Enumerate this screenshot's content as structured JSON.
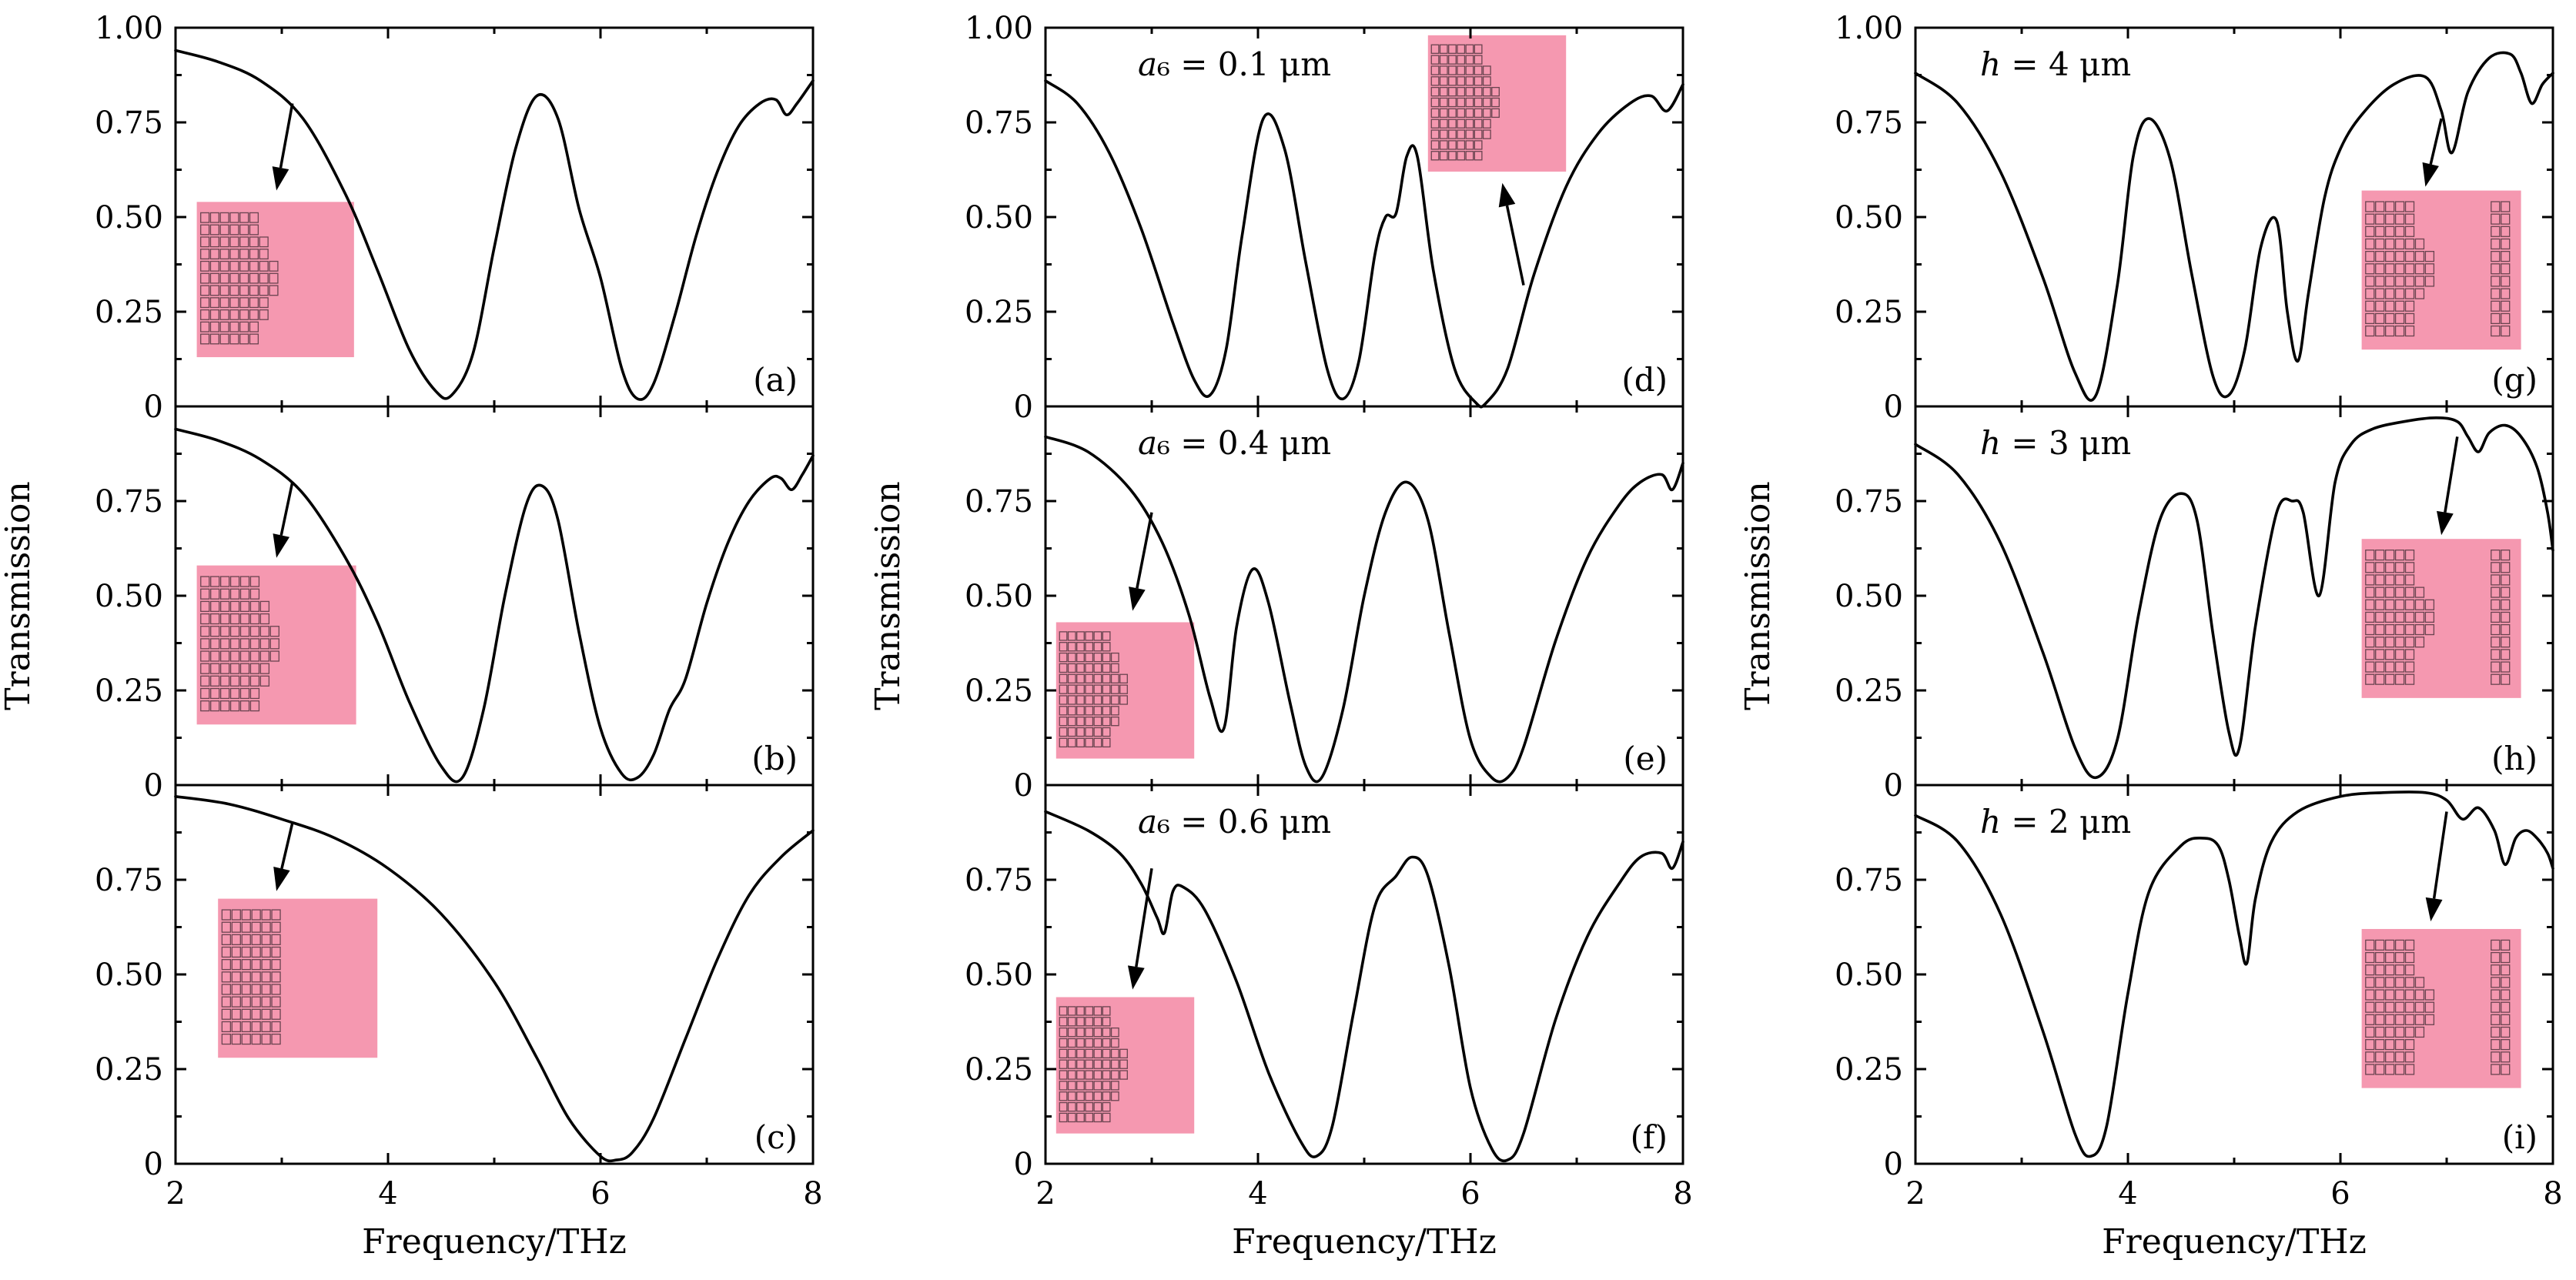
{
  "chart_data": {
    "type": "line",
    "xlabel": "Frequency/THz",
    "ylabel": "Transmission",
    "xlim": [
      2,
      8
    ],
    "ylim": [
      0,
      1
    ],
    "x_ticks": [
      "2",
      "4",
      "6",
      "8"
    ],
    "y_ticks_top": [
      "1.00",
      "0.75",
      "0.50",
      "0.25",
      "0"
    ],
    "y_ticks_lower": [
      "0.75",
      "0.50",
      "0.25",
      "0"
    ],
    "colors": {
      "line": "#000000",
      "inset": "#F598B0",
      "inset_cells": "#6a4450"
    },
    "panels": [
      {
        "label": "(a)",
        "annotation_var": "",
        "annotation_value": "",
        "inset_type": "step4",
        "inset": [
          2.2,
          0.13,
          3.68,
          0.54
        ],
        "arrow": [
          3.1,
          0.8,
          2.95,
          0.57
        ],
        "x": [
          2.0,
          2.4,
          2.8,
          3.2,
          3.6,
          3.9,
          4.2,
          4.45,
          4.6,
          4.8,
          5.0,
          5.2,
          5.4,
          5.6,
          5.8,
          6.0,
          6.2,
          6.35,
          6.5,
          6.7,
          6.9,
          7.1,
          7.3,
          7.5,
          7.65,
          7.75,
          7.85,
          8.0
        ],
        "y": [
          0.94,
          0.91,
          0.86,
          0.76,
          0.56,
          0.36,
          0.15,
          0.04,
          0.03,
          0.14,
          0.42,
          0.68,
          0.82,
          0.76,
          0.52,
          0.34,
          0.1,
          0.02,
          0.06,
          0.24,
          0.45,
          0.62,
          0.74,
          0.8,
          0.81,
          0.77,
          0.8,
          0.86
        ]
      },
      {
        "label": "(b)",
        "annotation_var": "",
        "annotation_value": "",
        "inset_type": "step3",
        "inset": [
          2.2,
          0.16,
          3.7,
          0.58
        ],
        "arrow": [
          3.1,
          0.8,
          2.95,
          0.6
        ],
        "x": [
          2.0,
          2.4,
          2.8,
          3.2,
          3.6,
          3.9,
          4.2,
          4.5,
          4.7,
          4.9,
          5.1,
          5.3,
          5.45,
          5.6,
          5.8,
          6.0,
          6.2,
          6.35,
          6.5,
          6.65,
          6.8,
          7.0,
          7.2,
          7.4,
          7.6,
          7.7,
          7.8,
          7.9,
          8.0
        ],
        "y": [
          0.94,
          0.91,
          0.86,
          0.77,
          0.6,
          0.43,
          0.22,
          0.05,
          0.02,
          0.2,
          0.5,
          0.74,
          0.79,
          0.7,
          0.4,
          0.15,
          0.03,
          0.02,
          0.08,
          0.2,
          0.28,
          0.48,
          0.64,
          0.75,
          0.81,
          0.81,
          0.78,
          0.82,
          0.87
        ]
      },
      {
        "label": "(c)",
        "annotation_var": "",
        "annotation_value": "",
        "inset_type": "uniform",
        "inset": [
          2.4,
          0.28,
          3.9,
          0.7
        ],
        "arrow": [
          3.1,
          0.9,
          2.95,
          0.72
        ],
        "x": [
          2.0,
          2.5,
          3.0,
          3.5,
          4.0,
          4.5,
          5.0,
          5.4,
          5.7,
          6.0,
          6.15,
          6.3,
          6.5,
          6.8,
          7.1,
          7.4,
          7.7,
          8.0
        ],
        "y": [
          0.97,
          0.95,
          0.91,
          0.86,
          0.78,
          0.66,
          0.48,
          0.28,
          0.12,
          0.02,
          0.01,
          0.03,
          0.12,
          0.33,
          0.54,
          0.71,
          0.81,
          0.88
        ]
      },
      {
        "label": "(d)",
        "annotation_var": "a",
        "annotation_value": "₆ = 0.1 μm",
        "inset_type": "step4",
        "inset": [
          5.6,
          0.62,
          6.9,
          0.98
        ],
        "arrow": [
          6.5,
          0.32,
          6.3,
          0.59
        ],
        "x": [
          2.0,
          2.3,
          2.6,
          2.9,
          3.2,
          3.4,
          3.55,
          3.7,
          3.85,
          4.05,
          4.25,
          4.45,
          4.65,
          4.8,
          4.95,
          5.1,
          5.2,
          5.3,
          5.4,
          5.5,
          5.65,
          5.85,
          6.05,
          6.15,
          6.35,
          6.6,
          6.9,
          7.2,
          7.5,
          7.7,
          7.85,
          8.0
        ],
        "y": [
          0.86,
          0.8,
          0.67,
          0.47,
          0.22,
          0.07,
          0.03,
          0.15,
          0.45,
          0.76,
          0.68,
          0.38,
          0.1,
          0.02,
          0.12,
          0.4,
          0.5,
          0.51,
          0.66,
          0.66,
          0.36,
          0.1,
          0.01,
          0.01,
          0.1,
          0.35,
          0.58,
          0.72,
          0.8,
          0.82,
          0.78,
          0.85
        ]
      },
      {
        "label": "(e)",
        "annotation_var": "a",
        "annotation_value": "₆ = 0.4 μm",
        "inset_type": "step4",
        "inset": [
          2.1,
          0.07,
          3.4,
          0.43
        ],
        "arrow": [
          3.0,
          0.72,
          2.82,
          0.46
        ],
        "x": [
          2.0,
          2.4,
          2.8,
          3.1,
          3.35,
          3.55,
          3.68,
          3.8,
          3.95,
          4.1,
          4.3,
          4.45,
          4.6,
          4.8,
          5.0,
          5.2,
          5.4,
          5.6,
          5.8,
          6.0,
          6.2,
          6.35,
          6.5,
          6.8,
          7.1,
          7.4,
          7.6,
          7.8,
          7.9,
          8.0
        ],
        "y": [
          0.92,
          0.88,
          0.78,
          0.64,
          0.45,
          0.23,
          0.15,
          0.42,
          0.57,
          0.48,
          0.22,
          0.05,
          0.02,
          0.2,
          0.5,
          0.72,
          0.8,
          0.7,
          0.4,
          0.12,
          0.02,
          0.02,
          0.1,
          0.38,
          0.6,
          0.74,
          0.8,
          0.82,
          0.78,
          0.85
        ]
      },
      {
        "label": "(f)",
        "annotation_var": "a",
        "annotation_value": "₆ = 0.6 μm",
        "inset_type": "step4",
        "inset": [
          2.1,
          0.08,
          3.4,
          0.44
        ],
        "arrow": [
          3.0,
          0.78,
          2.82,
          0.46
        ],
        "x": [
          2.0,
          2.4,
          2.7,
          2.9,
          3.05,
          3.12,
          3.2,
          3.3,
          3.5,
          3.8,
          4.1,
          4.4,
          4.55,
          4.7,
          4.9,
          5.1,
          5.3,
          5.45,
          5.6,
          5.8,
          6.0,
          6.2,
          6.35,
          6.5,
          6.8,
          7.1,
          7.4,
          7.6,
          7.8,
          7.9,
          8.0
        ],
        "y": [
          0.93,
          0.88,
          0.82,
          0.74,
          0.65,
          0.61,
          0.72,
          0.73,
          0.67,
          0.48,
          0.24,
          0.06,
          0.02,
          0.1,
          0.4,
          0.68,
          0.76,
          0.81,
          0.76,
          0.52,
          0.2,
          0.04,
          0.01,
          0.08,
          0.38,
          0.6,
          0.74,
          0.81,
          0.82,
          0.78,
          0.85
        ]
      },
      {
        "label": "(g)",
        "annotation_var": "h",
        "annotation_value": " = 4 μm",
        "inset_type": "split",
        "inset": [
          6.2,
          0.15,
          7.7,
          0.57
        ],
        "arrow": [
          6.95,
          0.76,
          6.8,
          0.58
        ],
        "x": [
          2.0,
          2.4,
          2.8,
          3.2,
          3.5,
          3.7,
          3.9,
          4.05,
          4.2,
          4.4,
          4.6,
          4.8,
          4.95,
          5.1,
          5.25,
          5.4,
          5.5,
          5.6,
          5.7,
          5.85,
          6.0,
          6.2,
          6.5,
          6.8,
          6.95,
          7.05,
          7.2,
          7.4,
          7.6,
          7.7,
          7.8,
          7.9,
          8.0
        ],
        "y": [
          0.88,
          0.8,
          0.62,
          0.34,
          0.09,
          0.03,
          0.32,
          0.66,
          0.76,
          0.65,
          0.35,
          0.08,
          0.03,
          0.15,
          0.42,
          0.49,
          0.25,
          0.12,
          0.3,
          0.55,
          0.68,
          0.77,
          0.85,
          0.87,
          0.78,
          0.67,
          0.83,
          0.92,
          0.93,
          0.88,
          0.8,
          0.85,
          0.88
        ]
      },
      {
        "label": "(h)",
        "annotation_var": "h",
        "annotation_value": " = 3 μm",
        "inset_type": "split",
        "inset": [
          6.2,
          0.23,
          7.7,
          0.65
        ],
        "arrow": [
          7.1,
          0.92,
          6.95,
          0.66
        ],
        "x": [
          2.0,
          2.4,
          2.8,
          3.2,
          3.5,
          3.7,
          3.9,
          4.1,
          4.3,
          4.5,
          4.65,
          4.8,
          4.95,
          5.05,
          5.2,
          5.4,
          5.55,
          5.65,
          5.8,
          5.95,
          6.1,
          6.3,
          6.6,
          6.9,
          7.1,
          7.2,
          7.3,
          7.4,
          7.55,
          7.7,
          7.85,
          7.95,
          8.0
        ],
        "y": [
          0.9,
          0.82,
          0.64,
          0.35,
          0.1,
          0.02,
          0.12,
          0.45,
          0.7,
          0.77,
          0.7,
          0.4,
          0.14,
          0.1,
          0.42,
          0.72,
          0.75,
          0.72,
          0.5,
          0.8,
          0.9,
          0.94,
          0.96,
          0.97,
          0.96,
          0.92,
          0.88,
          0.93,
          0.95,
          0.92,
          0.84,
          0.72,
          0.62
        ]
      },
      {
        "label": "(i)",
        "annotation_var": "h",
        "annotation_value": " = 2 μm",
        "inset_type": "split",
        "inset": [
          6.2,
          0.2,
          7.7,
          0.62
        ],
        "arrow": [
          7.0,
          0.93,
          6.85,
          0.64
        ],
        "x": [
          2.0,
          2.4,
          2.8,
          3.2,
          3.5,
          3.65,
          3.8,
          4.0,
          4.2,
          4.5,
          4.7,
          4.85,
          4.95,
          5.05,
          5.12,
          5.2,
          5.35,
          5.6,
          6.0,
          6.4,
          6.8,
          7.0,
          7.15,
          7.3,
          7.45,
          7.55,
          7.65,
          7.75,
          7.85,
          7.95,
          8.0
        ],
        "y": [
          0.92,
          0.85,
          0.66,
          0.35,
          0.08,
          0.02,
          0.1,
          0.45,
          0.72,
          0.84,
          0.86,
          0.84,
          0.75,
          0.6,
          0.53,
          0.7,
          0.85,
          0.93,
          0.97,
          0.98,
          0.98,
          0.96,
          0.91,
          0.94,
          0.88,
          0.79,
          0.86,
          0.88,
          0.86,
          0.82,
          0.78
        ]
      }
    ]
  }
}
